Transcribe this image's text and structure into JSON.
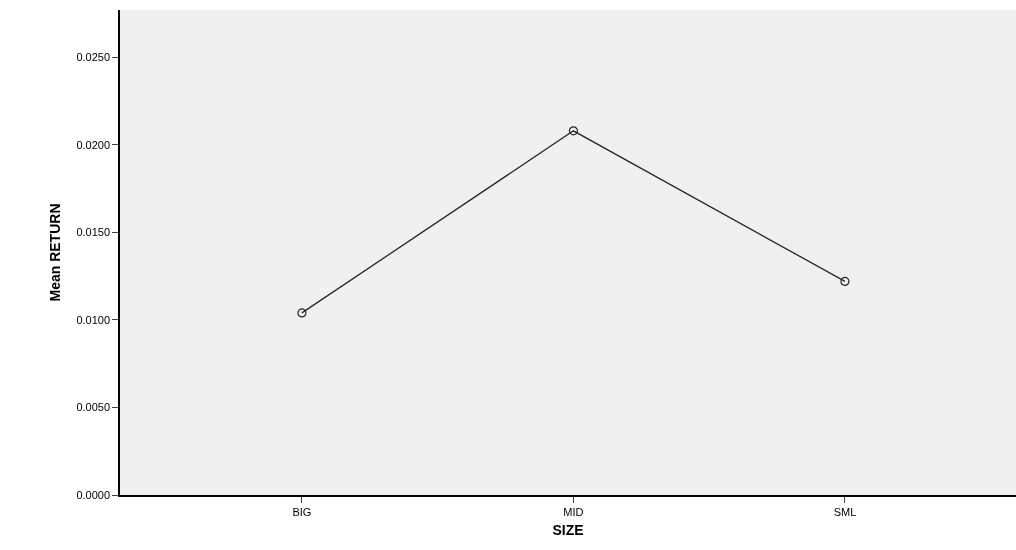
{
  "chart_data": {
    "type": "line",
    "xlabel": "SIZE",
    "ylabel": "Mean RETURN",
    "categories": [
      "BIG",
      "MID",
      "SML"
    ],
    "series": [
      {
        "color": "#262626",
        "values": [
          0.0104,
          0.0208,
          0.0122
        ]
      }
    ],
    "ylim": [
      0,
      0.0277
    ],
    "yticks": [
      {
        "value": 0,
        "label": "0.0000"
      },
      {
        "value": 0.005,
        "label": "0.0050"
      },
      {
        "value": 0.01,
        "label": "0.0100"
      },
      {
        "value": 0.015,
        "label": "0.0150"
      },
      {
        "value": 0.02,
        "label": "0.0200"
      },
      {
        "value": 0.025,
        "label": "0.0250"
      }
    ],
    "marker": "circle",
    "line_style": "solid",
    "grid": false
  }
}
